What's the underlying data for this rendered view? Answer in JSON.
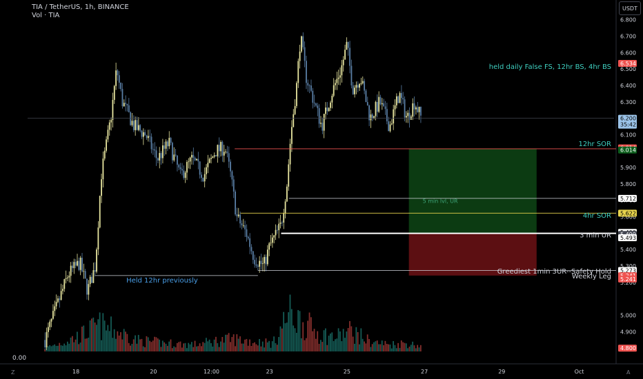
{
  "header": {
    "symbol_line": "TIA / TetherUS, 1h, BINANCE",
    "volume_label": "Vol · TIA"
  },
  "currency_badge": "USDT",
  "volume_pane_zero": "0.00",
  "corner_left": "Z",
  "corner_right": "A",
  "colors": {
    "up": "#e8e6a0",
    "down": "#5a7fa6",
    "vol_up": "#26a69a",
    "vol_down": "#ef5350",
    "profit_zone": "#0c3b12",
    "loss_zone": "#5c0f12",
    "annotation_teal": "#3fcfc0",
    "annotation_blue": "#4a9fe8",
    "last_price": "#9bc3e8"
  },
  "chart_data": {
    "type": "candlestick",
    "y_axis": {
      "ylim": [
        4.78,
        6.92
      ],
      "ticks": [
        "6.800",
        "6.700",
        "6.600",
        "6.500",
        "6.400",
        "6.300",
        "6.100",
        "6.000",
        "5.900",
        "5.800",
        "5.700",
        "5.600",
        "5.400",
        "5.300",
        "5.200",
        "5.000",
        "4.900"
      ]
    },
    "x_axis": {
      "ticks": [
        "18",
        "20",
        "12:00",
        "23",
        "25",
        "27",
        "29",
        "Oct"
      ],
      "tick_days": [
        18,
        20,
        21.5,
        23,
        25,
        27,
        29,
        31
      ],
      "range_days": [
        16.75,
        31.9
      ]
    },
    "price_path": [
      [
        17.2,
        4.85
      ],
      [
        17.5,
        5.05
      ],
      [
        17.8,
        5.25
      ],
      [
        18.1,
        5.32
      ],
      [
        18.3,
        5.15
      ],
      [
        18.5,
        5.3
      ],
      [
        18.65,
        5.85
      ],
      [
        18.9,
        6.2
      ],
      [
        19.05,
        6.5
      ],
      [
        19.2,
        6.3
      ],
      [
        19.5,
        6.15
      ],
      [
        19.8,
        6.1
      ],
      [
        20.1,
        5.95
      ],
      [
        20.4,
        6.05
      ],
      [
        20.7,
        5.85
      ],
      [
        21.0,
        5.95
      ],
      [
        21.3,
        5.85
      ],
      [
        21.6,
        6.0
      ],
      [
        21.85,
        6.02
      ],
      [
        22.0,
        5.85
      ],
      [
        22.15,
        5.6
      ],
      [
        22.4,
        5.5
      ],
      [
        22.6,
        5.35
      ],
      [
        22.85,
        5.3
      ],
      [
        23.0,
        5.42
      ],
      [
        23.3,
        5.55
      ],
      [
        23.45,
        5.8
      ],
      [
        23.55,
        6.1
      ],
      [
        23.7,
        6.4
      ],
      [
        23.8,
        6.7
      ],
      [
        23.95,
        6.45
      ],
      [
        24.15,
        6.3
      ],
      [
        24.35,
        6.15
      ],
      [
        24.6,
        6.35
      ],
      [
        24.85,
        6.5
      ],
      [
        25.0,
        6.65
      ],
      [
        25.15,
        6.38
      ],
      [
        25.35,
        6.45
      ],
      [
        25.6,
        6.2
      ],
      [
        25.85,
        6.3
      ],
      [
        26.1,
        6.15
      ],
      [
        26.35,
        6.35
      ],
      [
        26.55,
        6.2
      ],
      [
        26.75,
        6.3
      ],
      [
        26.92,
        6.2
      ]
    ],
    "volume_path": [
      [
        17.2,
        5
      ],
      [
        17.6,
        12
      ],
      [
        18.1,
        22
      ],
      [
        18.6,
        38
      ],
      [
        19.1,
        28
      ],
      [
        19.6,
        16
      ],
      [
        20.1,
        13
      ],
      [
        20.6,
        11
      ],
      [
        21.1,
        10
      ],
      [
        21.6,
        15
      ],
      [
        22.1,
        18
      ],
      [
        22.6,
        14
      ],
      [
        23.1,
        12
      ],
      [
        23.5,
        55
      ],
      [
        23.9,
        40
      ],
      [
        24.3,
        26
      ],
      [
        24.7,
        20
      ],
      [
        25.1,
        30
      ],
      [
        25.6,
        14
      ],
      [
        26.1,
        10
      ],
      [
        26.5,
        12
      ],
      [
        26.9,
        8
      ]
    ],
    "levels": [
      {
        "price": 6.014,
        "color": "#ef5350",
        "x_start": 22.1,
        "label": "12hr SOR",
        "label_color": "#3fcfc0",
        "label_price": 6.03,
        "width": 0.8
      },
      {
        "price": 5.712,
        "color": "#d1d4dc",
        "x_start": 23.5,
        "label": "5 min lvl, UR",
        "label_color": "#3fa57a",
        "label_price": 5.685,
        "label_left": true,
        "width": 0.8
      },
      {
        "price": 5.622,
        "color": "#e8d44d",
        "x_start": 22.25,
        "label": "4hr SOR",
        "label_color": "#3fcfc0",
        "label_price": 5.595,
        "width": 0.8
      },
      {
        "price": 5.499,
        "color": "#ffffff",
        "x_start": 23.3,
        "label": "3 min UR",
        "label_color": "#d1d4dc",
        "label_price": 5.475,
        "width": 2
      },
      {
        "price": 5.273,
        "color": "#d1d4dc",
        "x_start": 22.7,
        "label": "Greediest 1min 3UR--Safety Hold",
        "label_color": "#d1d4dc",
        "label_price": 5.255,
        "width": 0.8
      },
      {
        "price": 5.242,
        "color": "#d1d4dc",
        "x_start": 18.5,
        "x_end": 22.7,
        "label": "Held 12hr previously",
        "label_color": "#4a9fe8",
        "label_price": 5.2,
        "label_at": 19.3,
        "width": 0.8
      },
      {
        "price": 6.2,
        "color": "#434651",
        "x_start": 16.75,
        "x_end": 31.9,
        "label": "",
        "width": 0.7
      }
    ],
    "annotations": [
      {
        "text": "held daily False FS, 12hr BS, 4hr BS",
        "price": 6.5,
        "color": "#3fcfc0"
      },
      {
        "text": "Weekly Leg",
        "price": 5.224,
        "color": "#d1d4dc"
      }
    ],
    "position_tool": {
      "x_start": 26.6,
      "x_end": 29.9,
      "entry": 5.499,
      "target": 6.014,
      "stop": 5.242
    },
    "price_labels": [
      {
        "value": "6.534",
        "price": 6.534,
        "bg": "#ef5350",
        "fg": "#ffffff"
      },
      {
        "value": "6.200",
        "sub": "35:42",
        "price": 6.2,
        "bg": "#9bc3e8",
        "fg": "#000000"
      },
      {
        "value": "6.014",
        "price": 6.0195,
        "bg": "#ef5350",
        "fg": "#ffffff"
      },
      {
        "value": "6.014",
        "price": 6.0065,
        "bg": "#0c5e1c",
        "fg": "#ffffff"
      },
      {
        "value": "5.712",
        "price": 5.712,
        "bg": "#ffffff",
        "fg": "#000000"
      },
      {
        "value": "5.622",
        "price": 5.622,
        "bg": "#e8d44d",
        "fg": "#000000"
      },
      {
        "value": "5.499",
        "price": 5.505,
        "bg": "#ffffff",
        "fg": "#000000"
      },
      {
        "value": "5.499",
        "price": 5.4925,
        "bg": "#434651",
        "fg": "#ffffff"
      },
      {
        "value": "5.493",
        "price": 5.4725,
        "bg": "#ffffff",
        "fg": "#000000"
      },
      {
        "value": "5.273",
        "price": 5.273,
        "bg": "#ffffff",
        "fg": "#000000"
      },
      {
        "value": "5.241",
        "price": 5.241,
        "bg": "#ef5350",
        "fg": "#ffffff"
      },
      {
        "value": "5.241",
        "price": 5.221,
        "bg": "#ef5350",
        "fg": "#ffffff"
      },
      {
        "value": "4.800",
        "price": 4.8,
        "bg": "#ef5350",
        "fg": "#ffffff"
      }
    ]
  }
}
